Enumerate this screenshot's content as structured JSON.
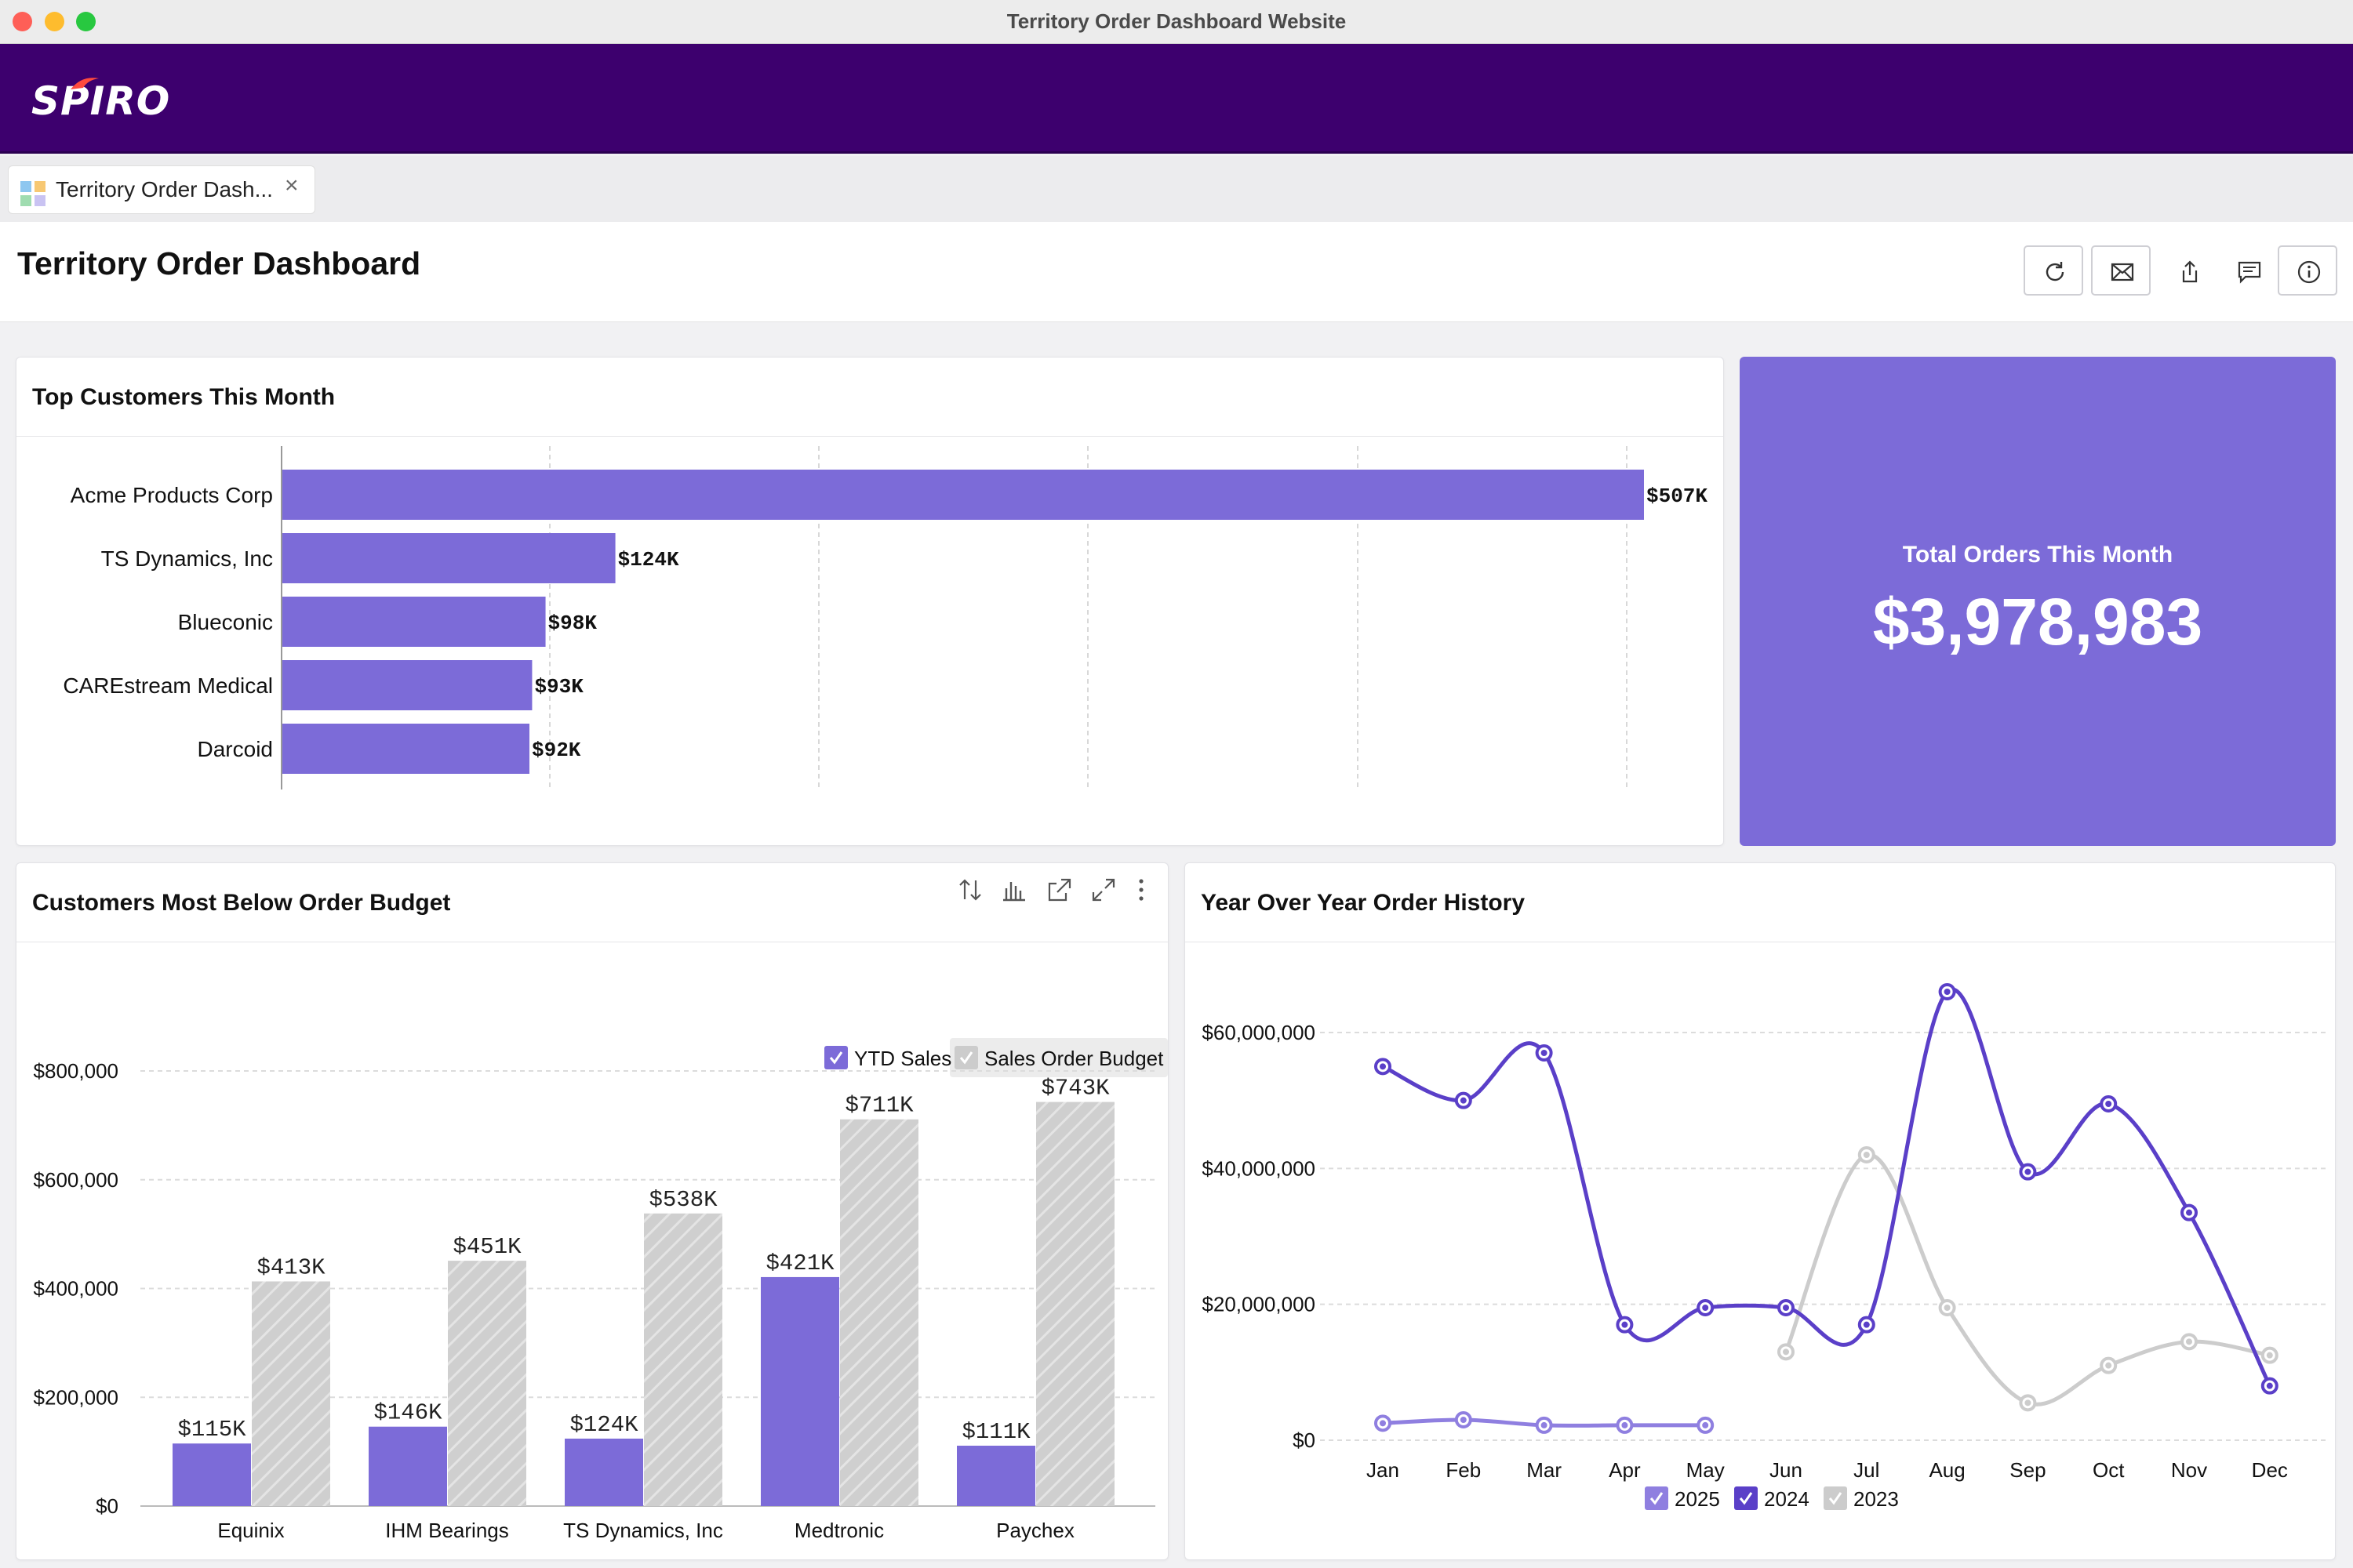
{
  "window": {
    "title": "Territory Order Dashboard Website"
  },
  "brand": {
    "logo_text": "SPIRO"
  },
  "tab": {
    "label": "Territory Order Dash...",
    "close": "×"
  },
  "page": {
    "title": "Territory Order Dashboard"
  },
  "toolbar": {
    "icons": [
      "refresh-icon",
      "email-icon",
      "share-icon",
      "comment-icon",
      "info-icon"
    ]
  },
  "kpi": {
    "label": "Total Orders This Month",
    "value": "$3,978,983"
  },
  "colors": {
    "purple": "#7c6bd8",
    "dark_purple": "#5a3fc8",
    "grey": "#cccccc",
    "brand_bg": "#3d006e"
  },
  "top_customers": {
    "title": "Top Customers This Month",
    "chart_data": {
      "type": "bar",
      "orientation": "horizontal",
      "categories": [
        "Acme Products Corp",
        "TS Dynamics, Inc",
        "Blueconic",
        "CAREstream Medical",
        "Darcoid"
      ],
      "values": [
        507,
        124,
        98,
        93,
        92
      ],
      "value_labels": [
        "$507K",
        "$124K",
        "$98K",
        "$93K",
        "$92K"
      ],
      "xlim": [
        0,
        560
      ]
    }
  },
  "budget": {
    "title": "Customers Most Below Order Budget",
    "legend": [
      "YTD Sales",
      "Sales Order Budget"
    ],
    "chart_data": {
      "type": "bar",
      "categories": [
        "Equinix",
        "IHM Bearings",
        "TS Dynamics, Inc",
        "Medtronic",
        "Paychex"
      ],
      "series": [
        {
          "name": "YTD Sales",
          "values": [
            115,
            146,
            124,
            421,
            111
          ],
          "labels": [
            "$115K",
            "$146K",
            "$124K",
            "$421K",
            "$111K"
          ]
        },
        {
          "name": "Sales Order Budget",
          "values": [
            413,
            451,
            538,
            711,
            743
          ],
          "labels": [
            "$413K",
            "$451K",
            "$538K",
            "$711K",
            "$743K"
          ]
        }
      ],
      "ylim": [
        0,
        800
      ],
      "yticks": [
        "$0",
        "$200,000",
        "$400,000",
        "$600,000",
        "$800,000"
      ]
    }
  },
  "yoy": {
    "title": "Year Over Year Order History",
    "chart_data": {
      "type": "line",
      "x": [
        "Jan",
        "Feb",
        "Mar",
        "Apr",
        "May",
        "Jun",
        "Jul",
        "Aug",
        "Sep",
        "Oct",
        "Nov",
        "Dec"
      ],
      "series": [
        {
          "name": "2025",
          "values": [
            2.5,
            3,
            2.2,
            2.2,
            2.2,
            null,
            null,
            null,
            null,
            null,
            null,
            null
          ]
        },
        {
          "name": "2024",
          "values": [
            55,
            50,
            57,
            17,
            19.5,
            19.5,
            17,
            66,
            39.5,
            49.5,
            33.5,
            8
          ]
        },
        {
          "name": "2023",
          "values": [
            null,
            null,
            null,
            null,
            null,
            13,
            42,
            19.5,
            5.5,
            11,
            14.5,
            12.5
          ]
        }
      ],
      "ylim": [
        0,
        70
      ],
      "yticks": [
        "$0",
        "$20,000,000",
        "$40,000,000",
        "$60,000,000"
      ],
      "legend": [
        "2025",
        "2024",
        "2023"
      ]
    }
  }
}
